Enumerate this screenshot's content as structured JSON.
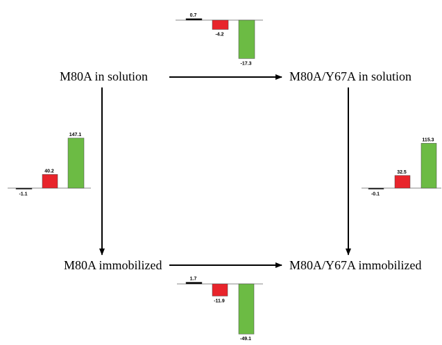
{
  "nodes": {
    "m80a_solution": "M80A in solution",
    "y67a_solution": "M80A/Y67A in solution",
    "m80a_immobilized": "M80A immobilized",
    "y67a_immobilized": "M80A/Y67A immobilized"
  },
  "colors": {
    "black": "#000000",
    "red": "#e8242b",
    "green": "#6cbb44",
    "axis": "#888888"
  },
  "chart_data": [
    {
      "type": "bar",
      "between": "M80A in solution → M80A/Y67A in solution",
      "values": [
        0.7,
        -4.2,
        -17.3
      ],
      "labels": [
        "0.7",
        "-4.2",
        "-17.3"
      ],
      "colors": [
        "#000000",
        "#e8242b",
        "#6cbb44"
      ]
    },
    {
      "type": "bar",
      "between": "M80A in solution → M80A immobilized",
      "values": [
        -1.1,
        40.2,
        147.1
      ],
      "labels": [
        "-1.1",
        "40.2",
        "147.1"
      ],
      "colors": [
        "#000000",
        "#e8242b",
        "#6cbb44"
      ]
    },
    {
      "type": "bar",
      "between": "M80A/Y67A in solution → M80A/Y67A immobilized",
      "values": [
        -0.1,
        32.5,
        115.3
      ],
      "labels": [
        "-0.1",
        "32.5",
        "115.3"
      ],
      "colors": [
        "#000000",
        "#e8242b",
        "#6cbb44"
      ]
    },
    {
      "type": "bar",
      "between": "M80A immobilized → M80A/Y67A immobilized",
      "values": [
        1.7,
        -11.9,
        -49.1
      ],
      "labels": [
        "1.7",
        "-11.9",
        "-49.1"
      ],
      "colors": [
        "#000000",
        "#e8242b",
        "#6cbb44"
      ]
    }
  ]
}
